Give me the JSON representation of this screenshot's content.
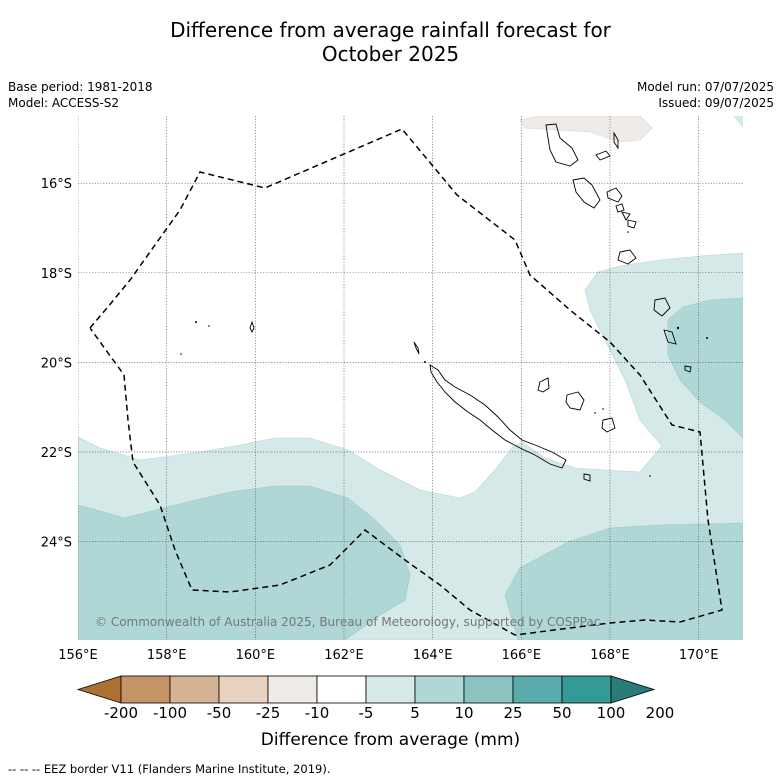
{
  "title": {
    "line1": "Difference from average rainfall forecast for",
    "line2": "October 2025"
  },
  "meta": {
    "base_period": "Base period: 1981-2018",
    "model": "Model: ACCESS-S2",
    "model_run": "Model run: 07/07/2025",
    "issued": "Issued: 09/07/2025"
  },
  "map": {
    "lon_range": [
      156,
      171
    ],
    "lat_range": [
      -26.2,
      -14.5
    ],
    "lon_ticks": [
      "156°E",
      "158°E",
      "160°E",
      "162°E",
      "164°E",
      "166°E",
      "168°E",
      "170°E"
    ],
    "lat_ticks": [
      "16°S",
      "18°S",
      "20°S",
      "22°S",
      "24°S"
    ],
    "grid": true,
    "copyright": "© Commonwealth of Australia 2025, Bureau of Meteorology, supported by COSPPac"
  },
  "colorbar": {
    "labels": [
      "-200",
      "-100",
      "-50",
      "-25",
      "-10",
      "-5",
      "5",
      "10",
      "25",
      "50",
      "100",
      "200"
    ],
    "colors": [
      "#ae7134",
      "#c49467",
      "#d5b394",
      "#e8d3c0",
      "#eeebe8",
      "#ffffff",
      "#d4e9e8",
      "#afd7d6",
      "#8bc3c1",
      "#5aabab",
      "#339a96",
      "#2a7b78"
    ],
    "title": "Difference from average (mm)"
  },
  "footnote": "--  --  -- EEZ border V11 (Flanders Marine Institute, 2019)."
}
